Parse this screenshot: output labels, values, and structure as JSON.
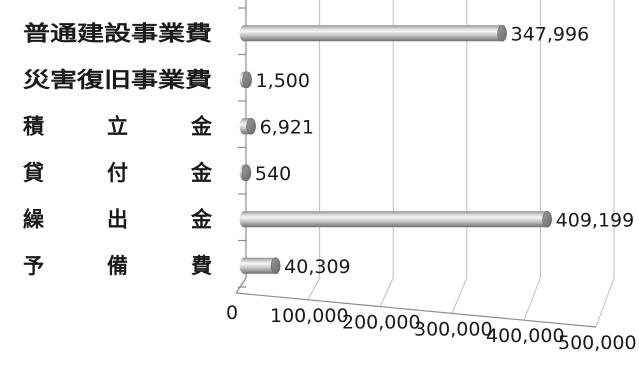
{
  "chart_data": {
    "type": "bar",
    "orientation": "horizontal",
    "style": "3d-cylinder",
    "title": "",
    "xlabel": "",
    "ylabel": "",
    "categories": [
      {
        "chars": [
          "普",
          "通",
          "建",
          "設",
          "事",
          "業",
          "費"
        ]
      },
      {
        "chars": [
          "災",
          "害",
          "復",
          "旧",
          "事",
          "業",
          "費"
        ]
      },
      {
        "chars": [
          "積",
          "立",
          "金"
        ]
      },
      {
        "chars": [
          "貸",
          "付",
          "金"
        ]
      },
      {
        "chars": [
          "繰",
          "出",
          "金"
        ]
      },
      {
        "chars": [
          "予",
          "備",
          "費"
        ]
      }
    ],
    "values": [
      347996,
      1500,
      6921,
      540,
      409199,
      40309
    ],
    "value_labels": [
      "347,996",
      "1,500",
      "6,921",
      "540",
      "409,199",
      "40,309"
    ],
    "xlim": [
      0,
      500000
    ],
    "ticks": [
      0,
      100000,
      200000,
      300000,
      400000,
      500000
    ],
    "tick_labels": [
      "0",
      "100,000",
      "200,000",
      "300,000",
      "400,000",
      "500,000"
    ],
    "grid": true,
    "bar_color": "#b3b3b3"
  }
}
